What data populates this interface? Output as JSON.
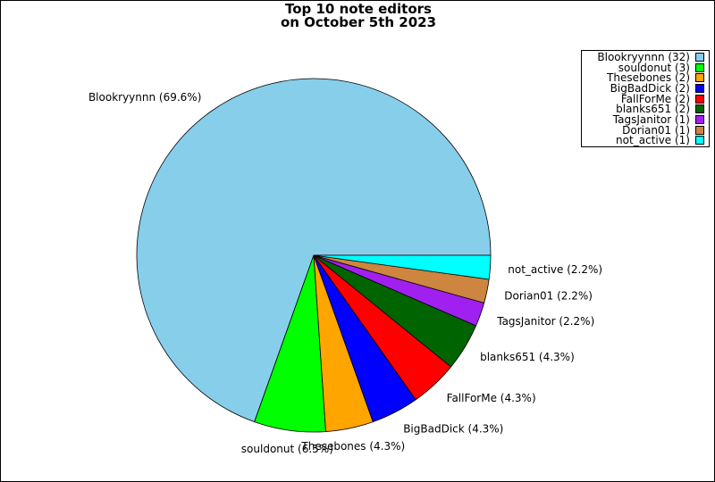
{
  "chart_data": {
    "type": "pie",
    "title": [
      "Top 10 note editors",
      "on October 5th 2023"
    ],
    "legend_position": "top-right",
    "start_angle_deg": 0,
    "direction": "counterclockwise",
    "slices": [
      {
        "name": "Blookryynnn",
        "value": 32,
        "percent": "69.6%",
        "color": "#87ceeb"
      },
      {
        "name": "souldonut",
        "value": 3,
        "percent": "6.5%",
        "color": "#00ff00"
      },
      {
        "name": "Thesebones",
        "value": 2,
        "percent": "4.3%",
        "color": "#ffa500"
      },
      {
        "name": "BigBadDick",
        "value": 2,
        "percent": "4.3%",
        "color": "#0000ff"
      },
      {
        "name": "FallForMe",
        "value": 2,
        "percent": "4.3%",
        "color": "#ff0000"
      },
      {
        "name": "blanks651",
        "value": 2,
        "percent": "4.3%",
        "color": "#006400"
      },
      {
        "name": "TagsJanitor",
        "value": 1,
        "percent": "2.2%",
        "color": "#a020f0"
      },
      {
        "name": "Dorian01",
        "value": 1,
        "percent": "2.2%",
        "color": "#cd853f"
      },
      {
        "name": "not_active",
        "value": 1,
        "percent": "2.2%",
        "color": "#00ffff"
      }
    ]
  }
}
